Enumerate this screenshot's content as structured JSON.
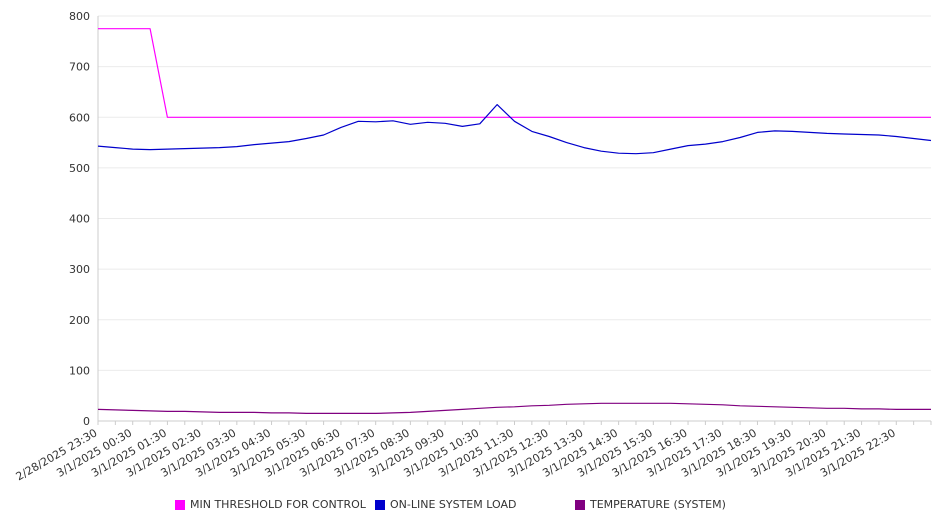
{
  "chart_data": {
    "type": "line",
    "title": "",
    "xlabel": "",
    "ylabel": "",
    "ylim": [
      0,
      800
    ],
    "yticks": [
      0,
      100,
      200,
      300,
      400,
      500,
      600,
      700,
      800
    ],
    "grid": true,
    "legend_position": "bottom",
    "x_tick_labels": [
      "2/28/2025 23:30",
      "3/1/2025 00:30",
      "3/1/2025 01:30",
      "3/1/2025 02:30",
      "3/1/2025 03:30",
      "3/1/2025 04:30",
      "3/1/2025 05:30",
      "3/1/2025 06:30",
      "3/1/2025 07:30",
      "3/1/2025 08:30",
      "3/1/2025 09:30",
      "3/1/2025 10:30",
      "3/1/2025 11:30",
      "3/1/2025 12:30",
      "3/1/2025 13:30",
      "3/1/2025 14:30",
      "3/1/2025 15:30",
      "3/1/2025 16:30",
      "3/1/2025 17:30",
      "3/1/2025 18:30",
      "3/1/2025 19:30",
      "3/1/2025 20:30",
      "3/1/2025 21:30",
      "3/1/2025 22:30"
    ],
    "x": [
      "2/28/2025 23:30",
      "3/1/2025 00:00",
      "3/1/2025 00:30",
      "3/1/2025 01:00",
      "3/1/2025 01:30",
      "3/1/2025 02:00",
      "3/1/2025 02:30",
      "3/1/2025 03:00",
      "3/1/2025 03:30",
      "3/1/2025 04:00",
      "3/1/2025 04:30",
      "3/1/2025 05:00",
      "3/1/2025 05:30",
      "3/1/2025 06:00",
      "3/1/2025 06:30",
      "3/1/2025 07:00",
      "3/1/2025 07:30",
      "3/1/2025 08:00",
      "3/1/2025 08:30",
      "3/1/2025 09:00",
      "3/1/2025 09:30",
      "3/1/2025 10:00",
      "3/1/2025 10:30",
      "3/1/2025 11:00",
      "3/1/2025 11:30",
      "3/1/2025 12:00",
      "3/1/2025 12:30",
      "3/1/2025 13:00",
      "3/1/2025 13:30",
      "3/1/2025 14:00",
      "3/1/2025 14:30",
      "3/1/2025 15:00",
      "3/1/2025 15:30",
      "3/1/2025 16:00",
      "3/1/2025 16:30",
      "3/1/2025 17:00",
      "3/1/2025 17:30",
      "3/1/2025 18:00",
      "3/1/2025 18:30",
      "3/1/2025 19:00",
      "3/1/2025 19:30",
      "3/1/2025 20:00",
      "3/1/2025 20:30",
      "3/1/2025 21:00",
      "3/1/2025 21:30",
      "3/1/2025 22:00",
      "3/1/2025 22:30",
      "3/1/2025 23:00",
      "3/1/2025 23:30"
    ],
    "series": [
      {
        "name": "MIN THRESHOLD FOR CONTROL",
        "color": "#ff00ff",
        "values": [
          775,
          775,
          775,
          775,
          600,
          600,
          600,
          600,
          600,
          600,
          600,
          600,
          600,
          600,
          600,
          600,
          600,
          600,
          600,
          600,
          600,
          600,
          600,
          600,
          600,
          600,
          600,
          600,
          600,
          600,
          600,
          600,
          600,
          600,
          600,
          600,
          600,
          600,
          600,
          600,
          600,
          600,
          600,
          600,
          600,
          600,
          600,
          600,
          600
        ]
      },
      {
        "name": "ON-LINE SYSTEM LOAD",
        "color": "#0000cc",
        "values": [
          543,
          540,
          537,
          536,
          537,
          538,
          539,
          540,
          542,
          546,
          549,
          552,
          558,
          565,
          580,
          592,
          591,
          593,
          586,
          590,
          588,
          582,
          587,
          625,
          592,
          572,
          562,
          550,
          540,
          533,
          529,
          528,
          530,
          537,
          544,
          547,
          552,
          560,
          570,
          573,
          572,
          570,
          568,
          567,
          566,
          565,
          562,
          558,
          554
        ]
      },
      {
        "name": "TEMPERATURE (SYSTEM)",
        "color": "#800080",
        "values": [
          23,
          22,
          21,
          20,
          19,
          19,
          18,
          17,
          17,
          17,
          16,
          16,
          15,
          15,
          15,
          15,
          15,
          16,
          17,
          19,
          21,
          23,
          25,
          27,
          28,
          30,
          31,
          33,
          34,
          35,
          35,
          35,
          35,
          35,
          34,
          33,
          32,
          30,
          29,
          28,
          27,
          26,
          25,
          25,
          24,
          24,
          23,
          23,
          23
        ]
      }
    ]
  }
}
